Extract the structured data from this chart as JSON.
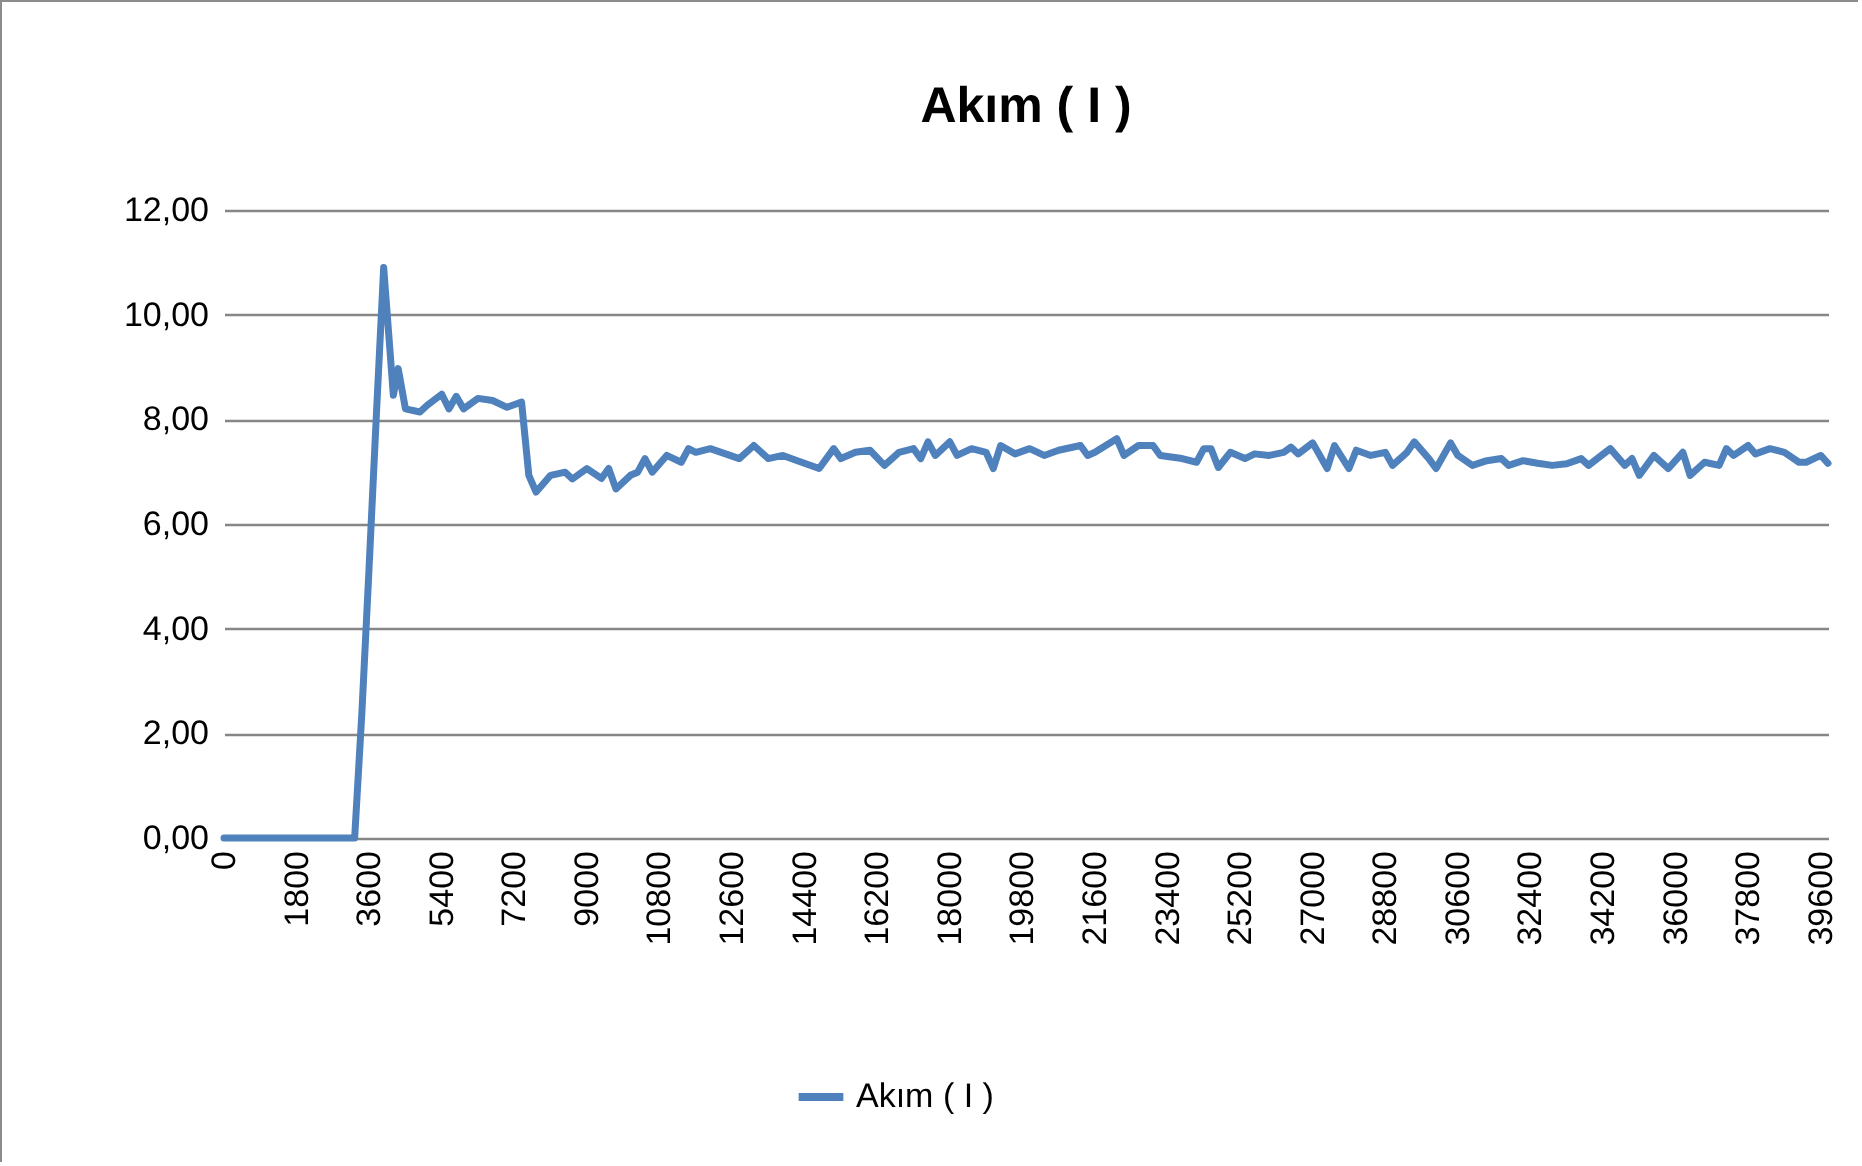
{
  "chart_data": {
    "type": "line",
    "title": "Akım ( I )",
    "x": [
      0,
      1800,
      3240,
      3420,
      3600,
      3780,
      3960,
      4200,
      4320,
      4500,
      4860,
      5040,
      5400,
      5580,
      5760,
      5940,
      6300,
      6660,
      7020,
      7380,
      7560,
      7740,
      8100,
      8460,
      8640,
      9000,
      9360,
      9540,
      9720,
      10080,
      10260,
      10440,
      10620,
      10980,
      11340,
      11520,
      11700,
      12060,
      12780,
      13140,
      13500,
      13860,
      14220,
      14760,
      15120,
      15300,
      15660,
      16020,
      16380,
      16740,
      17100,
      17280,
      17460,
      17640,
      18000,
      18180,
      18540,
      18900,
      19080,
      19260,
      19620,
      19980,
      20340,
      20700,
      21240,
      21420,
      21600,
      22140,
      22320,
      22680,
      23040,
      23220,
      23760,
      24120,
      24300,
      24480,
      24660,
      24960,
      25320,
      25560,
      25920,
      26280,
      26460,
      26640,
      27000,
      27360,
      27540,
      27900,
      28080,
      28440,
      28800,
      28980,
      29340,
      29520,
      29880,
      30060,
      30420,
      30600,
      30960,
      31320,
      31680,
      31860,
      32220,
      32580,
      32940,
      33300,
      33660,
      33840,
      34380,
      34740,
      34920,
      35100,
      35460,
      35820,
      36180,
      36360,
      36720,
      37080,
      37260,
      37440,
      37800,
      37980,
      38340,
      38700,
      39060,
      39240,
      39600,
      39780
    ],
    "series": [
      {
        "name": "Akım ( I )",
        "color": "#4f81bd",
        "values": [
          0,
          0,
          0,
          2.4,
          5.2,
          8.1,
          10.9,
          8.46,
          8.97,
          8.2,
          8.14,
          8.27,
          8.48,
          8.2,
          8.44,
          8.2,
          8.4,
          8.36,
          8.23,
          8.33,
          6.93,
          6.61,
          6.93,
          6.99,
          6.86,
          7.06,
          6.87,
          7.06,
          6.67,
          6.93,
          6.99,
          7.25,
          6.99,
          7.31,
          7.18,
          7.44,
          7.37,
          7.44,
          7.25,
          7.5,
          7.25,
          7.31,
          7.21,
          7.06,
          7.44,
          7.25,
          7.37,
          7.41,
          7.12,
          7.37,
          7.44,
          7.25,
          7.57,
          7.31,
          7.57,
          7.31,
          7.44,
          7.37,
          7.06,
          7.5,
          7.34,
          7.44,
          7.31,
          7.41,
          7.5,
          7.31,
          7.37,
          7.63,
          7.31,
          7.5,
          7.5,
          7.31,
          7.25,
          7.18,
          7.44,
          7.44,
          7.08,
          7.37,
          7.25,
          7.34,
          7.31,
          7.37,
          7.47,
          7.34,
          7.55,
          7.06,
          7.5,
          7.06,
          7.41,
          7.31,
          7.37,
          7.12,
          7.37,
          7.57,
          7.25,
          7.06,
          7.55,
          7.31,
          7.12,
          7.21,
          7.25,
          7.12,
          7.21,
          7.16,
          7.12,
          7.15,
          7.25,
          7.12,
          7.44,
          7.12,
          7.25,
          6.93,
          7.31,
          7.06,
          7.37,
          6.93,
          7.18,
          7.12,
          7.44,
          7.31,
          7.5,
          7.34,
          7.44,
          7.37,
          7.18,
          7.18,
          7.31,
          7.16
        ]
      }
    ],
    "xlim": [
      0,
      39780
    ],
    "xticks": [
      0,
      1800,
      3600,
      5400,
      7200,
      9000,
      10800,
      12600,
      14400,
      16200,
      18000,
      19800,
      21600,
      23400,
      25200,
      27000,
      28800,
      30600,
      32400,
      34200,
      36000,
      37800,
      39600
    ],
    "ylim": [
      0,
      12
    ],
    "yticks": [
      {
        "value": 0,
        "label": "0,00"
      },
      {
        "value": 2,
        "label": "2,00"
      },
      {
        "value": 4,
        "label": "4,00"
      },
      {
        "value": 6,
        "label": "6,00"
      },
      {
        "value": 8,
        "label": "8,00"
      },
      {
        "value": 10,
        "label": "10,00"
      },
      {
        "value": 12,
        "label": "12,00"
      }
    ],
    "grid": "y",
    "legend": "bottom",
    "marker": "none",
    "line_style": "solid"
  }
}
